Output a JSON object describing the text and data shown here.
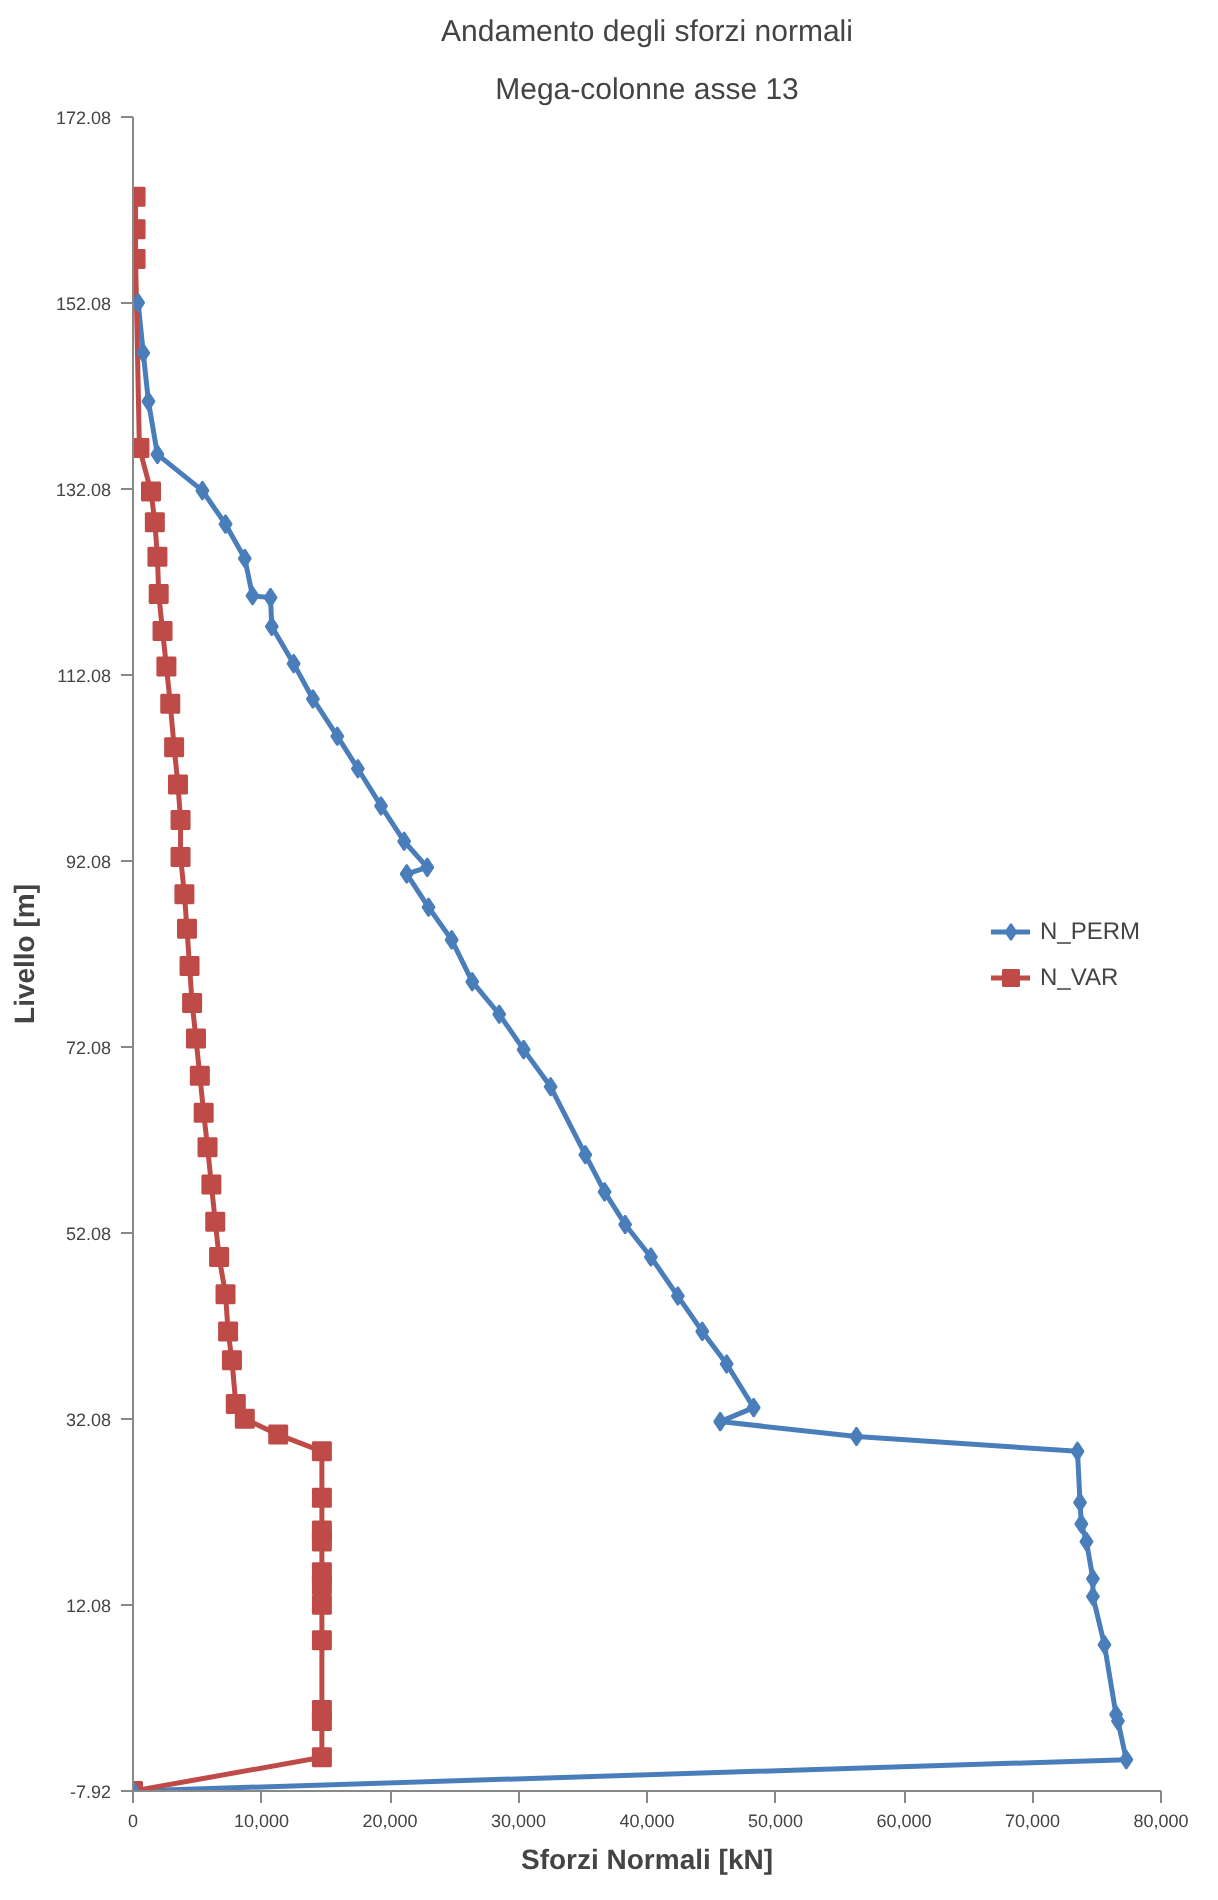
{
  "chart_data": {
    "type": "line",
    "title": "Andamento degli sforzi normali",
    "subtitle": "Mega-colonne asse 13",
    "xlabel": "Sforzi Normali [kN]",
    "ylabel": "Livello [m]",
    "xlim": [
      0,
      80000
    ],
    "ylim": [
      -7.92,
      172.08
    ],
    "xticks": [
      0,
      {
        "value": 10000,
        "label": "10,000"
      },
      {
        "value": 20000,
        "label": "20,000"
      },
      {
        "value": 30000,
        "label": "30,000"
      },
      {
        "value": 40000,
        "label": "40,000"
      },
      {
        "value": 50000,
        "label": "50,000"
      },
      {
        "value": 60000,
        "label": "60,000"
      },
      {
        "value": 70000,
        "label": "70,000"
      },
      {
        "value": 80000,
        "label": "80,000"
      }
    ],
    "yticks": [
      -7.92,
      12.08,
      32.08,
      52.08,
      72.08,
      92.08,
      112.08,
      132.08,
      152.08,
      172.08
    ],
    "grid": false,
    "legend": "right",
    "series": [
      {
        "name": "N_PERM",
        "color": "#4a7ebb",
        "marker": "diamond",
        "x": [
          0,
          77300,
          76650,
          76500,
          75600,
          74700,
          74700,
          74200,
          73800,
          73700,
          73500,
          56300,
          45700,
          48300,
          46200,
          44300,
          42400,
          40300,
          38300,
          36700,
          35200,
          32500,
          30400,
          28500,
          26400,
          24800,
          23000,
          21300,
          22900,
          21100,
          19300,
          17500,
          15900,
          14000,
          12500,
          10800,
          10700,
          9300,
          8700,
          7200,
          5400,
          1900,
          1200,
          800,
          400
        ],
        "values": [
          -7.92,
          -4.55,
          -0.4,
          0.3,
          7.8,
          13.0,
          14.9,
          18.9,
          20.8,
          23.1,
          28.6,
          30.2,
          31.8,
          33.3,
          38.0,
          41.5,
          45.3,
          49.5,
          53.0,
          56.5,
          60.5,
          67.8,
          71.8,
          75.6,
          79.1,
          83.6,
          87.1,
          90.7,
          91.4,
          94.2,
          98.0,
          102.0,
          105.5,
          109.5,
          113.3,
          117.3,
          120.4,
          120.6,
          124.6,
          128.3,
          131.9,
          135.8,
          141.5,
          146.7,
          152.1
        ]
      },
      {
        "name": "N_VAR",
        "color": "#be4b48",
        "marker": "square",
        "x": [
          0,
          14700,
          14700,
          14700,
          14700,
          14700,
          14700,
          14700,
          14700,
          14700,
          14700,
          14700,
          11300,
          8700,
          8000,
          7700,
          7400,
          7200,
          6700,
          6400,
          6100,
          5800,
          5500,
          5200,
          4900,
          4600,
          4400,
          4200,
          4000,
          3700,
          3700,
          3500,
          3200,
          2900,
          2600,
          2300,
          2000,
          1900,
          1700,
          1400,
          500,
          200,
          200,
          200
        ],
        "values": [
          -7.92,
          -4.3,
          -0.4,
          0.8,
          8.3,
          12.1,
          14.2,
          15.6,
          18.9,
          20.1,
          23.6,
          28.6,
          30.4,
          32.1,
          33.7,
          38.4,
          41.5,
          45.5,
          49.5,
          53.3,
          57.3,
          61.3,
          65.0,
          69.0,
          73.0,
          76.8,
          80.8,
          84.8,
          88.5,
          92.5,
          96.5,
          100.3,
          104.3,
          109.0,
          113.0,
          116.8,
          120.8,
          124.8,
          128.5,
          131.8,
          136.5,
          156.8,
          160.0,
          163.5
        ]
      }
    ]
  }
}
